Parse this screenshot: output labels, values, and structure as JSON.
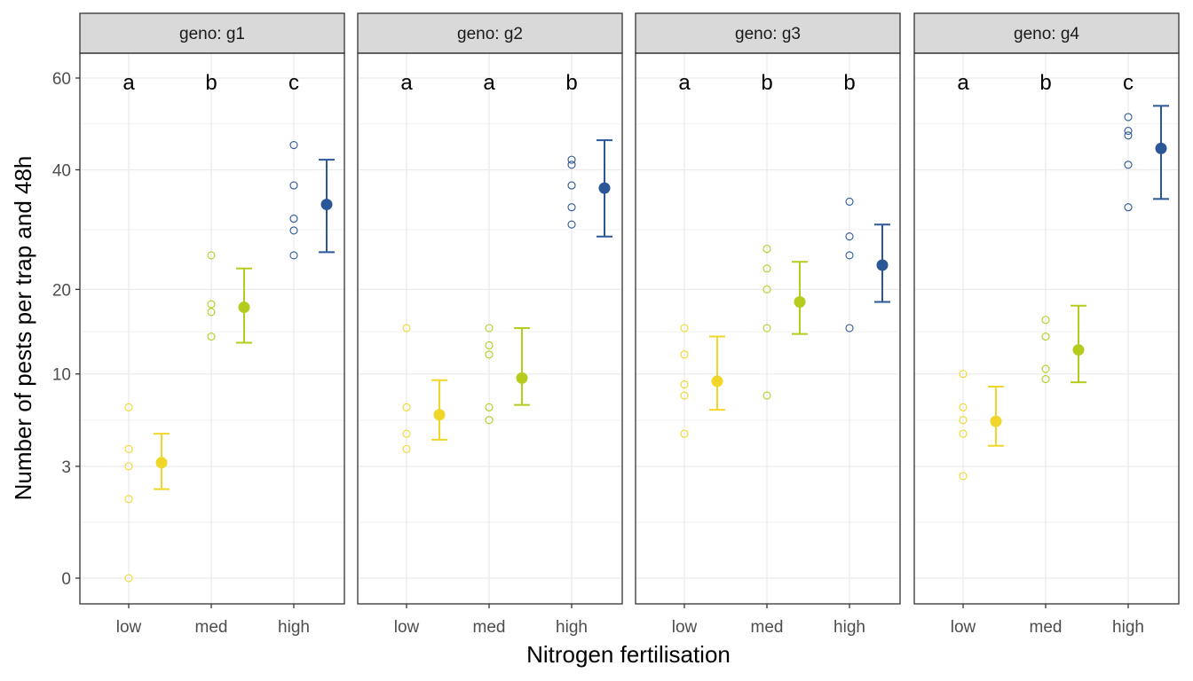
{
  "chart_data": {
    "type": "scatter",
    "xlabel": "Nitrogen fertilisation",
    "ylabel": "Number of pests per trap and 48h",
    "y_scale": "sqrt",
    "ylim": [
      0,
      66
    ],
    "y_ticks": [
      0,
      3,
      10,
      20,
      40,
      60
    ],
    "grid": true,
    "categories": [
      "low",
      "med",
      "high"
    ],
    "colors": {
      "low": "#f0d628",
      "med": "#b5cc1e",
      "high": "#2b5797"
    },
    "panels": [
      {
        "label": "geno: g1",
        "groups": [
          {
            "level": "low",
            "letter": "a",
            "points": [
              0,
              1.5,
              3,
              4,
              7
            ],
            "mean": 3.2,
            "lower": 1.9,
            "upper": 5
          },
          {
            "level": "med",
            "letter": "b",
            "points": [
              14,
              17,
              18,
              25
            ],
            "mean": 17.6,
            "lower": 13.3,
            "upper": 23
          },
          {
            "level": "high",
            "letter": "c",
            "points": [
              25,
              29,
              31,
              37,
              45
            ],
            "mean": 33.5,
            "lower": 25.5,
            "upper": 42
          }
        ]
      },
      {
        "label": "geno: g2",
        "groups": [
          {
            "level": "low",
            "letter": "a",
            "points": [
              4,
              5,
              7,
              15
            ],
            "mean": 6.4,
            "lower": 4.6,
            "upper": 9.4
          },
          {
            "level": "med",
            "letter": "a",
            "points": [
              6,
              7,
              12,
              13,
              15
            ],
            "mean": 9.6,
            "lower": 7.2,
            "upper": 15
          },
          {
            "level": "high",
            "letter": "b",
            "points": [
              30,
              33,
              37,
              41,
              42
            ],
            "mean": 36.5,
            "lower": 28,
            "upper": 46
          }
        ]
      },
      {
        "label": "geno: g3",
        "groups": [
          {
            "level": "low",
            "letter": "a",
            "points": [
              5,
              8,
              9,
              12,
              15
            ],
            "mean": 9.3,
            "lower": 6.8,
            "upper": 14
          },
          {
            "level": "med",
            "letter": "b",
            "points": [
              8,
              15,
              20,
              23,
              26
            ],
            "mean": 18.3,
            "lower": 14.3,
            "upper": 24
          },
          {
            "level": "high",
            "letter": "b",
            "points": [
              15,
              25,
              28,
              34
            ],
            "mean": 23.5,
            "lower": 18.3,
            "upper": 30
          }
        ]
      },
      {
        "label": "geno: g4",
        "groups": [
          {
            "level": "low",
            "letter": "a",
            "points": [
              2.5,
              5,
              6,
              7,
              10
            ],
            "mean": 5.9,
            "lower": 4.2,
            "upper": 8.8
          },
          {
            "level": "med",
            "letter": "b",
            "points": [
              9.5,
              10.5,
              14,
              16
            ],
            "mean": 12.5,
            "lower": 9.2,
            "upper": 17.8
          },
          {
            "level": "high",
            "letter": "c",
            "points": [
              33,
              41,
              47,
              48,
              51
            ],
            "mean": 44.3,
            "lower": 34.5,
            "upper": 53.5
          }
        ]
      }
    ]
  }
}
